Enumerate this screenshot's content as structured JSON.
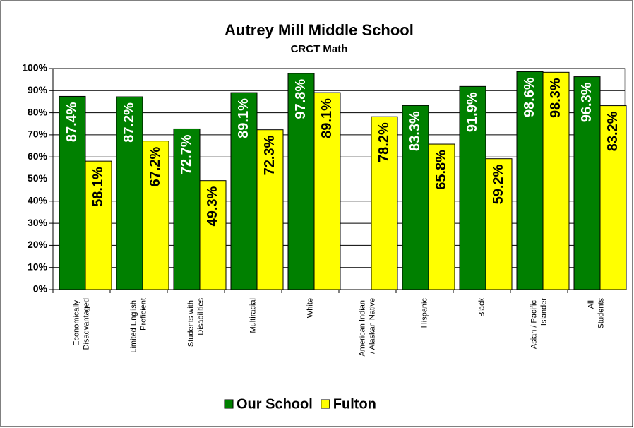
{
  "chart_data": {
    "type": "bar",
    "title": "Autrey Mill Middle School",
    "subtitle": "CRCT Math",
    "categories": [
      "Economically Disadvantaged",
      "Limited English Proficient",
      "Students with Disabilities",
      "Multiracial",
      "White",
      "American Indian / Alaskan Native",
      "Hispanic",
      "Black",
      "Asian / Pacific Islander",
      "All Students"
    ],
    "series": [
      {
        "name": "Our School",
        "color": "#008000",
        "values": [
          87.4,
          87.2,
          72.7,
          89.1,
          97.8,
          null,
          83.3,
          91.9,
          98.6,
          96.3
        ],
        "value_labels": [
          "87.4%",
          "87.2%",
          "72.7%",
          "89.1%",
          "97.8%",
          null,
          "83.3%",
          "91.9%",
          "98.6%",
          "96.3%"
        ]
      },
      {
        "name": "Fulton",
        "color": "#ffff00",
        "values": [
          58.1,
          67.2,
          49.3,
          72.3,
          89.1,
          78.2,
          65.8,
          59.2,
          98.3,
          83.2
        ],
        "value_labels": [
          "58.1%",
          "67.2%",
          "49.3%",
          "72.3%",
          "89.1%",
          "78.2%",
          "65.8%",
          "59.2%",
          "98.3%",
          "83.2%"
        ]
      }
    ],
    "ylim": [
      0,
      100
    ],
    "yticks": [
      {
        "value": 0,
        "label": "0%"
      },
      {
        "value": 10,
        "label": "10%"
      },
      {
        "value": 20,
        "label": "20%"
      },
      {
        "value": 30,
        "label": "30%"
      },
      {
        "value": 40,
        "label": "40%"
      },
      {
        "value": 50,
        "label": "50%"
      },
      {
        "value": 60,
        "label": "60%"
      },
      {
        "value": 70,
        "label": "70%"
      },
      {
        "value": 80,
        "label": "80%"
      },
      {
        "value": 90,
        "label": "90%"
      },
      {
        "value": 100,
        "label": "100%"
      }
    ],
    "grid": true,
    "legend": "bottom"
  }
}
